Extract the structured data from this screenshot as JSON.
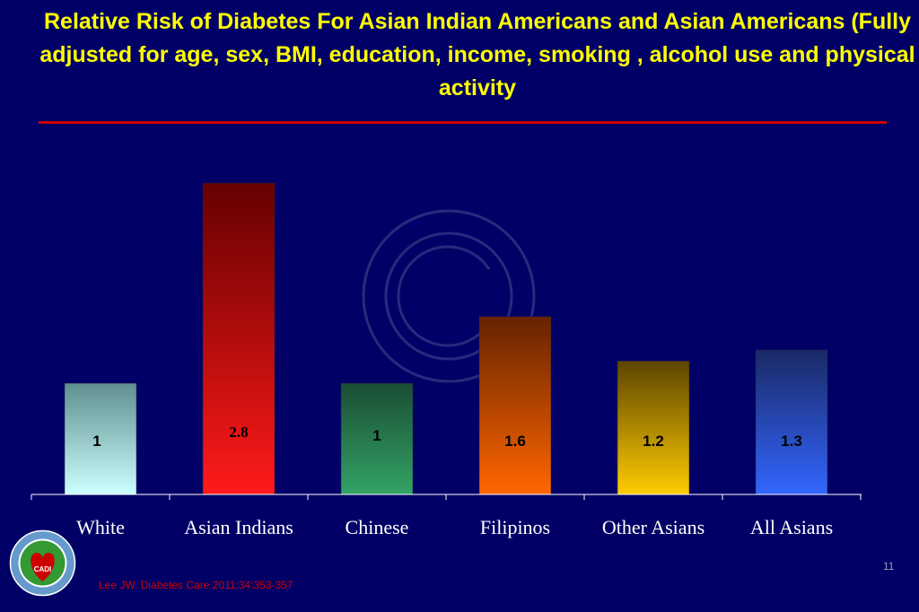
{
  "slide": {
    "title": "Relative Risk of Diabetes  For Asian Indian Americans   and  Asian Americans (Fully adjusted for  age, sex, BMI, education, income, smoking , alcohol use and physical activity",
    "citation": "Lee JW. Diabetes Care 2011;34:353-357",
    "page_number": "11",
    "logo_text": "CADI"
  },
  "chart_data": {
    "type": "bar",
    "title": "Relative Risk of Diabetes  For Asian Indian Americans   and  Asian Americans (Fully adjusted for  age, sex, BMI, education, income, smoking , alcohol use and physical activity",
    "categories": [
      "White",
      "Asian Indians",
      "Chinese",
      "Filipinos",
      "Other Asians",
      "All Asians"
    ],
    "values": [
      1,
      2.8,
      1,
      1.6,
      1.2,
      1.3
    ],
    "value_labels": [
      "1",
      "2.8",
      "1",
      "1.6",
      "1.2",
      "1.3"
    ],
    "bar_colors": [
      [
        "#5f8f8f",
        "#ccffff"
      ],
      [
        "#660000",
        "#ff1a1a"
      ],
      [
        "#1a4d33",
        "#33a366"
      ],
      [
        "#662200",
        "#ff6600"
      ],
      [
        "#5c4400",
        "#ffcc00"
      ],
      [
        "#1a2866",
        "#3366ff"
      ]
    ],
    "xlabel": "",
    "ylabel": "",
    "ylim": [
      0,
      2.8
    ],
    "grid": false,
    "legend": "none"
  }
}
